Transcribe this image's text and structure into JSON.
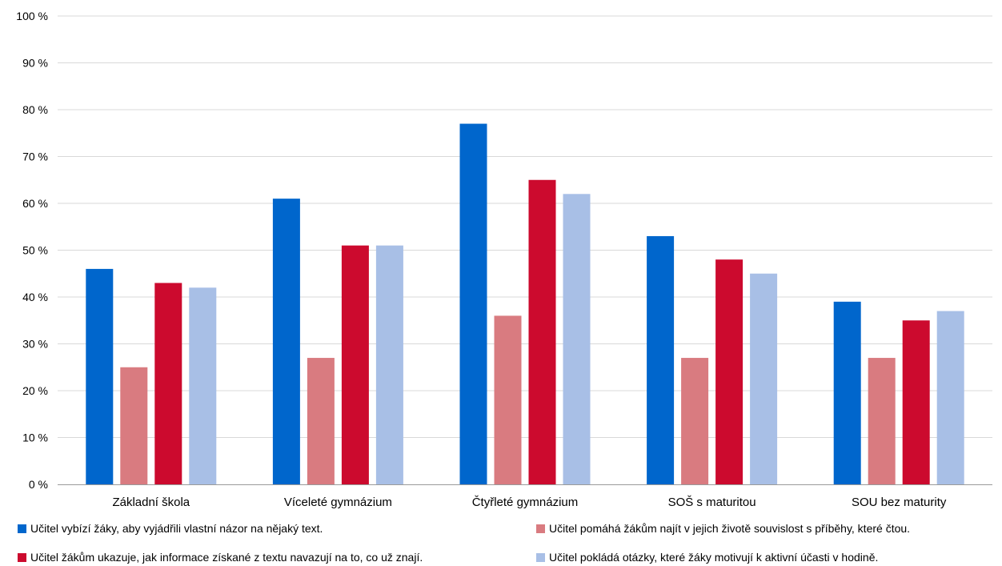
{
  "chart_data": {
    "type": "bar",
    "title": "",
    "xlabel": "",
    "ylabel": "",
    "ylim": [
      0,
      100
    ],
    "yticks": [
      "0 %",
      "10 %",
      "20 %",
      "30 %",
      "40 %",
      "50 %",
      "60 %",
      "70 %",
      "80 %",
      "90 %",
      "100 %"
    ],
    "grid": true,
    "legend_position": "bottom",
    "categories": [
      "Základní škola",
      "Víceleté gymnázium",
      "Čtyřleté gymnázium",
      "SOŠ s maturitou",
      "SOU bez maturity"
    ],
    "series": [
      {
        "name": "Učitel vybízí žáky, aby vyjádřili vlastní názor na nějaký text.",
        "color": "#0066cc",
        "values": [
          46,
          61,
          77,
          53,
          39
        ]
      },
      {
        "name": "Učitel pomáhá žákům najít v jejich životě souvislost s příběhy, které čtou.",
        "color": "#d97b80",
        "values": [
          25,
          27,
          36,
          27,
          27
        ]
      },
      {
        "name": "Učitel žákům ukazuje, jak informace získané z textu navazují na to, co už znají.",
        "color": "#cc0a2e",
        "values": [
          43,
          51,
          65,
          48,
          35
        ]
      },
      {
        "name": "Učitel pokládá otázky, které žáky motivují k aktivní účasti v hodině.",
        "color": "#a8bfe6",
        "values": [
          42,
          51,
          62,
          45,
          37
        ]
      }
    ]
  }
}
